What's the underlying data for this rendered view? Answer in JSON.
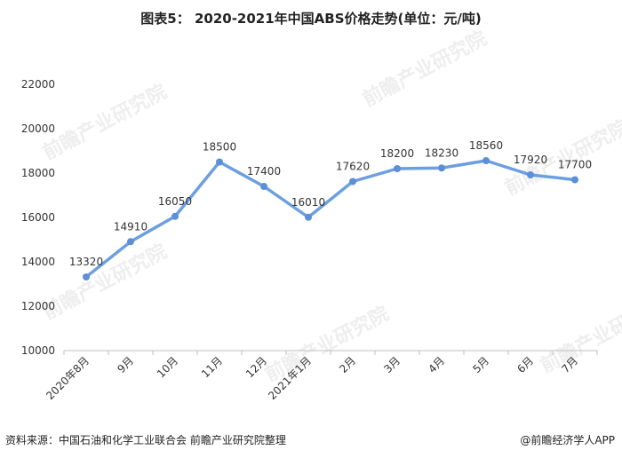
{
  "title": "图表5：  2020-2021年中国ABS价格走势(单位：元/吨)",
  "footer": {
    "source": "资料来源：中国石油和化学工业联合会 前瞻产业研究院整理",
    "credit": "@前瞻经济学人APP"
  },
  "watermark": "前瞻产业研究院",
  "colors": {
    "line": "#6c9fe2",
    "point": "#5b8fd8"
  },
  "chart_data": {
    "type": "line",
    "categories": [
      "2020年8月",
      "9月",
      "10月",
      "11月",
      "12月",
      "2021年1月",
      "2月",
      "3月",
      "4月",
      "5月",
      "6月",
      "7月"
    ],
    "series": [
      {
        "values": [
          13320,
          14910,
          16050,
          18500,
          17400,
          16010,
          17620,
          18200,
          18230,
          18560,
          17920,
          17700
        ]
      }
    ],
    "ylim": [
      10000,
      22000
    ],
    "yticks": [
      10000,
      12000,
      14000,
      16000,
      18000,
      20000,
      22000
    ],
    "grid": false,
    "legend": "none"
  }
}
